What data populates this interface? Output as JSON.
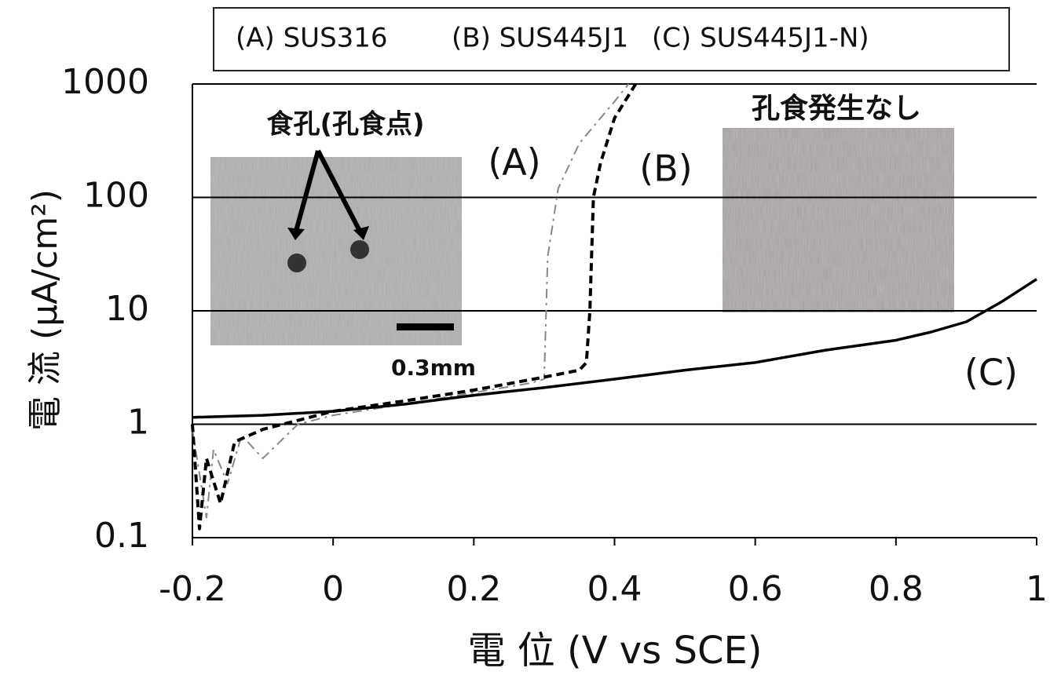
{
  "chart_data": {
    "type": "line",
    "ylabel": "電 流 (μA/cm²)",
    "xlabel": "電 位 (V vs SCE)",
    "annotations": [
      "(A)",
      "(B)",
      "(C)",
      "食孔(孔食点)",
      "0.3mm",
      "孔食発生なし"
    ],
    "xlim": [
      -0.2,
      1
    ],
    "xticks": [
      -0.2,
      0,
      0.2,
      0.4,
      0.6,
      0.8,
      1
    ],
    "ylim": [
      0.1,
      1000
    ],
    "yticks": [
      0.1,
      1,
      10,
      100,
      1000
    ],
    "yscale": "log",
    "grid": true,
    "series": [
      {
        "name": "(A) SUS316",
        "color": "#888888",
        "dash": "dashdot",
        "x": [
          -0.2,
          -0.18,
          -0.17,
          -0.15,
          -0.13,
          -0.1,
          -0.05,
          0,
          0.1,
          0.2,
          0.28,
          0.3,
          0.305,
          0.32,
          0.35,
          0.38,
          0.4,
          0.42
        ],
        "values": [
          0.9,
          0.15,
          0.6,
          0.3,
          0.8,
          0.5,
          1.0,
          1.2,
          1.5,
          1.9,
          2.3,
          2.5,
          30,
          120,
          300,
          500,
          700,
          1000
        ]
      },
      {
        "name": "(B) SUS445J1",
        "color": "#000000",
        "dash": "dashed",
        "x": [
          -0.2,
          -0.19,
          -0.18,
          -0.16,
          -0.14,
          -0.1,
          0,
          0.1,
          0.2,
          0.3,
          0.35,
          0.36,
          0.365,
          0.37,
          0.38,
          0.4,
          0.43
        ],
        "values": [
          1.0,
          0.12,
          0.5,
          0.2,
          0.7,
          0.9,
          1.3,
          1.6,
          2.0,
          2.6,
          3.0,
          3.5,
          10,
          100,
          200,
          500,
          1000
        ]
      },
      {
        "name": "(C) SUS445J1-N)",
        "color": "#000000",
        "dash": "solid",
        "x": [
          -0.2,
          -0.1,
          0,
          0.1,
          0.2,
          0.3,
          0.4,
          0.5,
          0.6,
          0.7,
          0.8,
          0.85,
          0.9,
          0.95,
          1.0
        ],
        "values": [
          1.15,
          1.2,
          1.3,
          1.5,
          1.8,
          2.1,
          2.5,
          3.0,
          3.5,
          4.5,
          5.5,
          6.5,
          8,
          12,
          19
        ]
      }
    ]
  }
}
